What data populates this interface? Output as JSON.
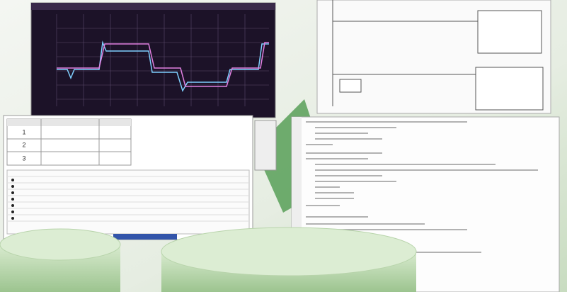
{
  "table": {
    "rows": [
      [
        "1"
      ],
      [
        "2"
      ],
      [
        "3"
      ]
    ]
  }
}
